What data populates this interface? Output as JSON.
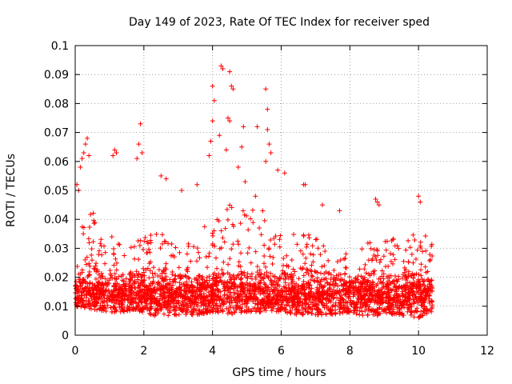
{
  "chart_data": {
    "type": "scatter",
    "title": "Day 149 of 2023, Rate Of TEC Index for receiver sped",
    "xlabel": "GPS time / hours",
    "ylabel": "ROTI / TECUs",
    "xlim": [
      0,
      12
    ],
    "ylim": [
      0,
      0.1
    ],
    "x_ticks": [
      0,
      2,
      4,
      6,
      8,
      10,
      12
    ],
    "x_tick_labels": [
      "0",
      "2",
      "4",
      "6",
      "8",
      "10",
      "12"
    ],
    "y_ticks": [
      0,
      0.01,
      0.02,
      0.03,
      0.04,
      0.05,
      0.06,
      0.07,
      0.08,
      0.09,
      0.1
    ],
    "y_tick_labels": [
      "0",
      "0.01",
      "0.02",
      "0.03",
      "0.04",
      "0.05",
      "0.06",
      "0.07",
      "0.08",
      "0.09",
      "0.1"
    ],
    "grid": true,
    "marker": "+",
    "series_color": "#ff0000",
    "grid_color": "#a0a0a0",
    "axis_color": "#000000",
    "time_range": [
      0.0,
      10.4
    ],
    "outlier_points": [
      {
        "x": 4.25,
        "y": 0.093
      },
      {
        "x": 4.3,
        "y": 0.092
      },
      {
        "x": 4.5,
        "y": 0.091
      },
      {
        "x": 4.55,
        "y": 0.086
      },
      {
        "x": 4.6,
        "y": 0.085
      },
      {
        "x": 4.0,
        "y": 0.086
      },
      {
        "x": 4.05,
        "y": 0.081
      },
      {
        "x": 4.0,
        "y": 0.074
      },
      {
        "x": 4.45,
        "y": 0.075
      },
      {
        "x": 4.5,
        "y": 0.074
      },
      {
        "x": 4.9,
        "y": 0.072
      },
      {
        "x": 5.3,
        "y": 0.072
      },
      {
        "x": 5.55,
        "y": 0.085
      },
      {
        "x": 5.6,
        "y": 0.078
      },
      {
        "x": 5.6,
        "y": 0.071
      },
      {
        "x": 5.65,
        "y": 0.066
      },
      {
        "x": 5.7,
        "y": 0.063
      },
      {
        "x": 5.55,
        "y": 0.06
      },
      {
        "x": 4.4,
        "y": 0.064
      },
      {
        "x": 4.75,
        "y": 0.058
      },
      {
        "x": 3.95,
        "y": 0.067
      },
      {
        "x": 3.9,
        "y": 0.062
      },
      {
        "x": 4.2,
        "y": 0.069
      },
      {
        "x": 4.85,
        "y": 0.065
      },
      {
        "x": 1.9,
        "y": 0.073
      },
      {
        "x": 1.85,
        "y": 0.066
      },
      {
        "x": 1.95,
        "y": 0.063
      },
      {
        "x": 1.8,
        "y": 0.061
      },
      {
        "x": 0.35,
        "y": 0.068
      },
      {
        "x": 0.3,
        "y": 0.066
      },
      {
        "x": 0.25,
        "y": 0.063
      },
      {
        "x": 0.4,
        "y": 0.062
      },
      {
        "x": 0.2,
        "y": 0.061
      },
      {
        "x": 0.15,
        "y": 0.058
      },
      {
        "x": 1.15,
        "y": 0.064
      },
      {
        "x": 1.2,
        "y": 0.063
      },
      {
        "x": 1.1,
        "y": 0.062
      },
      {
        "x": 5.9,
        "y": 0.057
      },
      {
        "x": 6.1,
        "y": 0.056
      },
      {
        "x": 6.65,
        "y": 0.052
      },
      {
        "x": 6.7,
        "y": 0.052
      },
      {
        "x": 10.0,
        "y": 0.048
      },
      {
        "x": 10.05,
        "y": 0.046
      },
      {
        "x": 0.1,
        "y": 0.05
      },
      {
        "x": 0.05,
        "y": 0.052
      },
      {
        "x": 2.5,
        "y": 0.055
      },
      {
        "x": 2.65,
        "y": 0.054
      },
      {
        "x": 3.1,
        "y": 0.05
      },
      {
        "x": 3.55,
        "y": 0.052
      },
      {
        "x": 4.95,
        "y": 0.053
      },
      {
        "x": 5.25,
        "y": 0.048
      },
      {
        "x": 8.75,
        "y": 0.047
      },
      {
        "x": 8.8,
        "y": 0.046
      },
      {
        "x": 8.85,
        "y": 0.045
      },
      {
        "x": 7.7,
        "y": 0.043
      },
      {
        "x": 7.2,
        "y": 0.045
      }
    ],
    "bulk_envelope": [
      {
        "x": 0.0,
        "lo": 0.01,
        "hi": 0.034
      },
      {
        "x": 0.5,
        "lo": 0.009,
        "hi": 0.045
      },
      {
        "x": 1.0,
        "lo": 0.008,
        "hi": 0.035
      },
      {
        "x": 1.5,
        "lo": 0.008,
        "hi": 0.03
      },
      {
        "x": 2.0,
        "lo": 0.008,
        "hi": 0.034
      },
      {
        "x": 2.5,
        "lo": 0.006,
        "hi": 0.036
      },
      {
        "x": 3.0,
        "lo": 0.007,
        "hi": 0.03
      },
      {
        "x": 3.5,
        "lo": 0.007,
        "hi": 0.034
      },
      {
        "x": 4.0,
        "lo": 0.008,
        "hi": 0.042
      },
      {
        "x": 4.5,
        "lo": 0.007,
        "hi": 0.045
      },
      {
        "x": 5.0,
        "lo": 0.008,
        "hi": 0.044
      },
      {
        "x": 5.5,
        "lo": 0.008,
        "hi": 0.046
      },
      {
        "x": 6.0,
        "lo": 0.008,
        "hi": 0.035
      },
      {
        "x": 6.5,
        "lo": 0.007,
        "hi": 0.037
      },
      {
        "x": 7.0,
        "lo": 0.007,
        "hi": 0.035
      },
      {
        "x": 7.5,
        "lo": 0.007,
        "hi": 0.027
      },
      {
        "x": 8.0,
        "lo": 0.008,
        "hi": 0.03
      },
      {
        "x": 8.5,
        "lo": 0.006,
        "hi": 0.032
      },
      {
        "x": 9.0,
        "lo": 0.007,
        "hi": 0.035
      },
      {
        "x": 9.5,
        "lo": 0.007,
        "hi": 0.033
      },
      {
        "x": 10.0,
        "lo": 0.006,
        "hi": 0.037
      },
      {
        "x": 10.4,
        "lo": 0.008,
        "hi": 0.033
      }
    ],
    "bulk_density_peak_y": 0.014,
    "bulk_point_count": 3200
  }
}
